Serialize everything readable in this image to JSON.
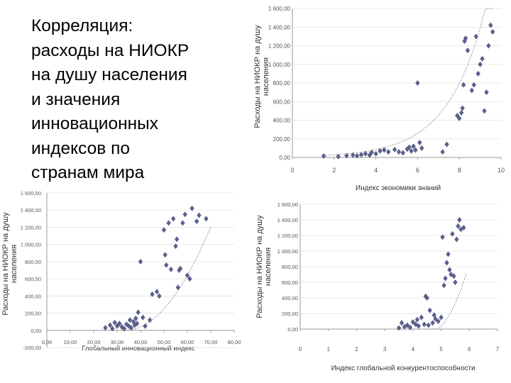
{
  "slide": {
    "title": "Корреляция:\nрасходы на НИОКР\nна душу населения\nи значения\nинновационных\nиндексов по\nстранам мира"
  },
  "colors": {
    "marker": "#5a5f8c",
    "trend": "#7a7a7a",
    "axis": "#9a9a9a",
    "background_right": "#dff0d2"
  },
  "chart_data": [
    {
      "type": "scatter",
      "title": "",
      "xlabel": "Индекс экономики знаний",
      "ylabel": "Расходы на НИОКР на душу населения",
      "ylabel_lines": [
        "Расходы на НИОКР на душу",
        "населения"
      ],
      "xlim": [
        0,
        10
      ],
      "ylim": [
        0,
        1600
      ],
      "x_ticks": [
        0,
        2,
        4,
        6,
        8,
        10
      ],
      "x_tick_labels": [
        "0",
        "2",
        "4",
        "6",
        "8",
        "10"
      ],
      "y_ticks": [
        0,
        200,
        400,
        600,
        800,
        1000,
        1200,
        1400,
        1600
      ],
      "y_tick_labels": [
        "0,00",
        "200,00",
        "400,00",
        "600,00",
        "800,00",
        "1 000,00",
        "1 200,00",
        "1 400,00",
        "1 600,00"
      ],
      "trendline": "exponential",
      "trend": {
        "a": 9,
        "b": 0.56
      },
      "points": [
        [
          1.5,
          15
        ],
        [
          2.2,
          10
        ],
        [
          2.6,
          20
        ],
        [
          2.9,
          25
        ],
        [
          3.1,
          18
        ],
        [
          3.3,
          30
        ],
        [
          3.5,
          40
        ],
        [
          3.7,
          25
        ],
        [
          3.8,
          55
        ],
        [
          4.0,
          40
        ],
        [
          4.2,
          70
        ],
        [
          4.4,
          80
        ],
        [
          4.6,
          60
        ],
        [
          4.9,
          85
        ],
        [
          5.1,
          60
        ],
        [
          5.3,
          50
        ],
        [
          5.5,
          90
        ],
        [
          5.6,
          110
        ],
        [
          5.7,
          70
        ],
        [
          5.8,
          120
        ],
        [
          5.9,
          80
        ],
        [
          6.0,
          800
        ],
        [
          6.1,
          160
        ],
        [
          6.2,
          100
        ],
        [
          7.2,
          60
        ],
        [
          7.4,
          140
        ],
        [
          7.9,
          450
        ],
        [
          8.0,
          420
        ],
        [
          8.1,
          480
        ],
        [
          8.15,
          530
        ],
        [
          8.2,
          780
        ],
        [
          8.25,
          1250
        ],
        [
          8.3,
          1280
        ],
        [
          8.4,
          1150
        ],
        [
          8.6,
          720
        ],
        [
          8.7,
          780
        ],
        [
          8.8,
          1300
        ],
        [
          8.9,
          900
        ],
        [
          9.0,
          1000
        ],
        [
          9.1,
          1060
        ],
        [
          9.2,
          500
        ],
        [
          9.3,
          700
        ],
        [
          9.4,
          1200
        ],
        [
          9.5,
          1420
        ],
        [
          9.6,
          1350
        ]
      ]
    },
    {
      "type": "scatter",
      "title": "",
      "xlabel": "Глобальный инновационный индекс",
      "ylabel": "Расходы на НИОКР на душу населения",
      "ylabel_lines": [
        "Расходы на НИОКР на душу",
        "населения"
      ],
      "xlim": [
        0,
        80
      ],
      "ylim": [
        -200,
        1600
      ],
      "x_ticks": [
        0,
        10,
        20,
        30,
        40,
        50,
        60,
        70,
        80
      ],
      "x_tick_labels": [
        "0,00",
        "10,00",
        "20,00",
        "30,00",
        "40,00",
        "50,00",
        "60,00",
        "70,00",
        "80,00"
      ],
      "y_ticks": [
        -200,
        0,
        200,
        400,
        600,
        800,
        1000,
        1200,
        1400,
        1600
      ],
      "y_tick_labels": [
        "-200,00",
        "0,00",
        "200,00",
        "400,00",
        "600,00",
        "800,00",
        "1 000,00",
        "1 200,00",
        "1 400,00",
        "1 600,00"
      ],
      "trendline": "polynomial",
      "trend": {
        "c0": 1000,
        "c1": -60,
        "c2": 0.9
      },
      "points": [
        [
          25,
          30
        ],
        [
          27,
          60
        ],
        [
          28,
          20
        ],
        [
          29,
          90
        ],
        [
          30,
          50
        ],
        [
          31,
          80
        ],
        [
          32,
          40
        ],
        [
          33,
          20
        ],
        [
          34,
          70
        ],
        [
          35,
          50
        ],
        [
          35.5,
          120
        ],
        [
          36,
          30
        ],
        [
          37,
          100
        ],
        [
          37.5,
          60
        ],
        [
          38,
          140
        ],
        [
          38.5,
          80
        ],
        [
          39,
          210
        ],
        [
          40,
          800
        ],
        [
          41,
          150
        ],
        [
          42,
          50
        ],
        [
          44,
          120
        ],
        [
          45,
          420
        ],
        [
          47,
          450
        ],
        [
          48,
          400
        ],
        [
          50,
          1170
        ],
        [
          50.5,
          880
        ],
        [
          51,
          760
        ],
        [
          52,
          1250
        ],
        [
          53,
          710
        ],
        [
          54,
          1300
        ],
        [
          55,
          980
        ],
        [
          55.5,
          1060
        ],
        [
          56,
          500
        ],
        [
          56.5,
          700
        ],
        [
          57,
          720
        ],
        [
          58,
          1250
        ],
        [
          59,
          1350
        ],
        [
          60,
          640
        ],
        [
          61,
          600
        ],
        [
          62,
          1420
        ],
        [
          64,
          1270
        ],
        [
          65,
          1340
        ],
        [
          68,
          1300
        ]
      ]
    },
    {
      "type": "scatter",
      "title": "",
      "xlabel": "Индекс глобальной конкурентоспособности",
      "ylabel": "Расходы на НИОКР на душу населения",
      "ylabel_lines": [
        "Расходы на НИОКР на душу",
        "населения"
      ],
      "xlim": [
        0,
        7
      ],
      "ylim": [
        0,
        1600
      ],
      "x_ticks": [
        0,
        1,
        2,
        3,
        4,
        5,
        6,
        7
      ],
      "x_tick_labels": [
        "0",
        "1",
        "2",
        "3",
        "4",
        "5",
        "6",
        "7"
      ],
      "y_ticks": [
        0,
        200,
        400,
        600,
        800,
        1000,
        1200,
        1400,
        1600
      ],
      "y_tick_labels": [
        "0,00",
        "200,00",
        "400,00",
        "600,00",
        "800,00",
        "1 000,00",
        "1 200,00",
        "1 400,00",
        "1 600,00"
      ],
      "trendline": "polynomial",
      "trend": {
        "c0": 9240,
        "c1": -4040,
        "c2": 440
      },
      "points": [
        [
          3.5,
          15
        ],
        [
          3.6,
          80
        ],
        [
          3.7,
          30
        ],
        [
          3.8,
          50
        ],
        [
          3.9,
          20
        ],
        [
          4.0,
          90
        ],
        [
          4.1,
          60
        ],
        [
          4.15,
          120
        ],
        [
          4.2,
          40
        ],
        [
          4.3,
          150
        ],
        [
          4.4,
          60
        ],
        [
          4.45,
          420
        ],
        [
          4.5,
          400
        ],
        [
          4.55,
          50
        ],
        [
          4.6,
          240
        ],
        [
          4.7,
          80
        ],
        [
          4.75,
          180
        ],
        [
          4.8,
          130
        ],
        [
          4.9,
          100
        ],
        [
          5.0,
          150
        ],
        [
          5.05,
          1180
        ],
        [
          5.1,
          560
        ],
        [
          5.15,
          650
        ],
        [
          5.2,
          850
        ],
        [
          5.25,
          960
        ],
        [
          5.3,
          760
        ],
        [
          5.35,
          700
        ],
        [
          5.4,
          1220
        ],
        [
          5.45,
          680
        ],
        [
          5.5,
          600
        ],
        [
          5.55,
          1150
        ],
        [
          5.6,
          1320
        ],
        [
          5.65,
          1400
        ],
        [
          5.7,
          1280
        ],
        [
          5.8,
          1300
        ]
      ]
    }
  ]
}
